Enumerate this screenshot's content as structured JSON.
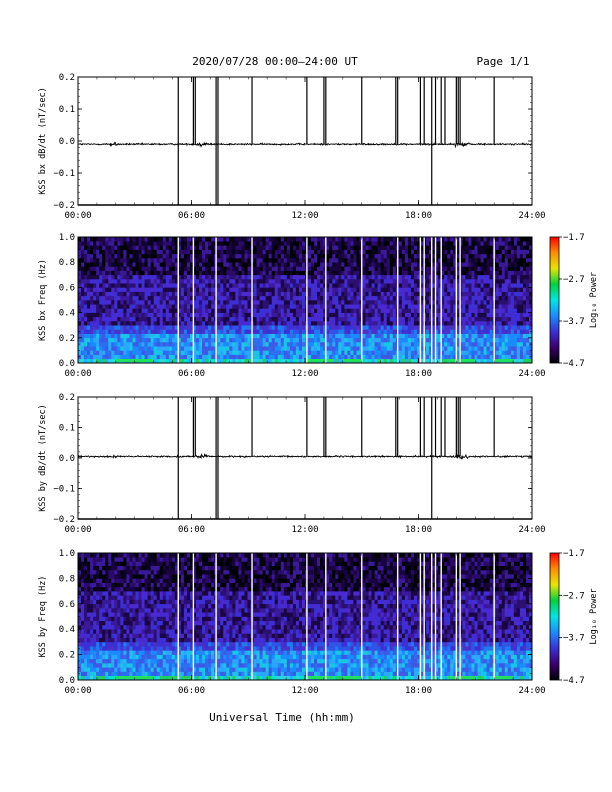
{
  "header": {
    "title": "2020/07/28  00:00–24:00 UT",
    "page": "Page 1/1"
  },
  "xaxis": {
    "title": "Universal Time (hh:mm)",
    "range_hours": [
      0,
      24
    ],
    "ticks": [
      {
        "v": 0,
        "label": "00:00"
      },
      {
        "v": 6,
        "label": "06:00"
      },
      {
        "v": 12,
        "label": "12:00"
      },
      {
        "v": 18,
        "label": "18:00"
      },
      {
        "v": 24,
        "label": "24:00"
      }
    ]
  },
  "colors": {
    "colorbar_stops": [
      "#000000",
      "#3a0070",
      "#3c2fd6",
      "#1a8cff",
      "#00e6e6",
      "#00d23c",
      "#e6e600",
      "#ff8c00",
      "#ff0000"
    ],
    "trace": "#000000",
    "gap_line": "#ffffff"
  },
  "chart_data": [
    {
      "type": "line",
      "panel": "bx-waveform",
      "ylabel": "KSS bx dB/dt (nT/sec)",
      "ylim": [
        -0.2,
        0.2
      ],
      "yticks": [
        {
          "v": 0.2,
          "label": "0.2"
        },
        {
          "v": 0.1,
          "label": "0.1"
        },
        {
          "v": 0.0,
          "label": "0.0"
        },
        {
          "v": -0.1,
          "label": "−0.1"
        },
        {
          "v": -0.2,
          "label": "−0.2"
        }
      ],
      "baseline": -0.01,
      "spikes_hours": [
        5.3,
        6.1,
        6.2,
        7.3,
        7.4,
        9.2,
        12.1,
        13.0,
        13.1,
        15.0,
        16.8,
        16.9,
        18.1,
        18.3,
        18.7,
        18.9,
        19.2,
        19.4,
        20.0,
        20.1,
        20.2,
        22.0
      ],
      "spike_down_hours": [
        5.3,
        7.3,
        7.4,
        18.7
      ]
    },
    {
      "type": "heatmap",
      "panel": "bx-spectrogram",
      "ylabel": "KSS bx Freq (Hz)",
      "ylim": [
        0.0,
        1.0
      ],
      "yticks": [
        {
          "v": 1.0,
          "label": "1.0"
        },
        {
          "v": 0.8,
          "label": "0.8"
        },
        {
          "v": 0.6,
          "label": "0.6"
        },
        {
          "v": 0.4,
          "label": "0.4"
        },
        {
          "v": 0.2,
          "label": "0.2"
        },
        {
          "v": 0.0,
          "label": "0.0"
        }
      ],
      "colorbar": {
        "label": "Log₁₀ Power",
        "range": [
          -4.7,
          -1.7
        ],
        "ticks": [
          {
            "v": -1.7,
            "label": "−1.7"
          },
          {
            "v": -2.7,
            "label": "−2.7"
          },
          {
            "v": -3.7,
            "label": "−3.7"
          },
          {
            "v": -4.7,
            "label": "−4.7"
          }
        ]
      },
      "gaps_hours": [
        5.3,
        6.1,
        7.3,
        9.2,
        12.1,
        13.1,
        15.0,
        16.9,
        18.1,
        18.3,
        18.7,
        18.9,
        19.2,
        20.0,
        20.2,
        22.0
      ]
    },
    {
      "type": "line",
      "panel": "by-waveform",
      "ylabel": "KSS by dB/dt (nT/sec)",
      "ylim": [
        -0.2,
        0.2
      ],
      "yticks": [
        {
          "v": 0.2,
          "label": "0.2"
        },
        {
          "v": 0.1,
          "label": "0.1"
        },
        {
          "v": 0.0,
          "label": "0.0"
        },
        {
          "v": -0.1,
          "label": "−0.1"
        },
        {
          "v": -0.2,
          "label": "−0.2"
        }
      ],
      "baseline": 0.005,
      "spikes_hours": [
        5.3,
        6.1,
        6.2,
        7.3,
        7.4,
        9.2,
        12.1,
        13.0,
        13.1,
        15.0,
        16.8,
        16.9,
        18.1,
        18.3,
        18.7,
        18.9,
        19.2,
        19.4,
        20.0,
        20.1,
        20.2,
        22.0
      ],
      "spike_down_hours": [
        5.3,
        7.3,
        7.4,
        18.7
      ]
    },
    {
      "type": "heatmap",
      "panel": "by-spectrogram",
      "ylabel": "KSS by Freq (Hz)",
      "ylim": [
        0.0,
        1.0
      ],
      "yticks": [
        {
          "v": 1.0,
          "label": "1.0"
        },
        {
          "v": 0.8,
          "label": "0.8"
        },
        {
          "v": 0.6,
          "label": "0.6"
        },
        {
          "v": 0.4,
          "label": "0.4"
        },
        {
          "v": 0.2,
          "label": "0.2"
        },
        {
          "v": 0.0,
          "label": "0.0"
        }
      ],
      "colorbar": {
        "label": "Log₁₀ Power",
        "range": [
          -4.7,
          -1.7
        ],
        "ticks": [
          {
            "v": -1.7,
            "label": "−1.7"
          },
          {
            "v": -2.7,
            "label": "−2.7"
          },
          {
            "v": -3.7,
            "label": "−3.7"
          },
          {
            "v": -4.7,
            "label": "−4.7"
          }
        ]
      },
      "gaps_hours": [
        5.3,
        6.1,
        7.3,
        9.2,
        12.1,
        13.1,
        15.0,
        16.9,
        18.1,
        18.3,
        18.7,
        18.9,
        19.2,
        20.0,
        20.2,
        22.0
      ]
    }
  ]
}
